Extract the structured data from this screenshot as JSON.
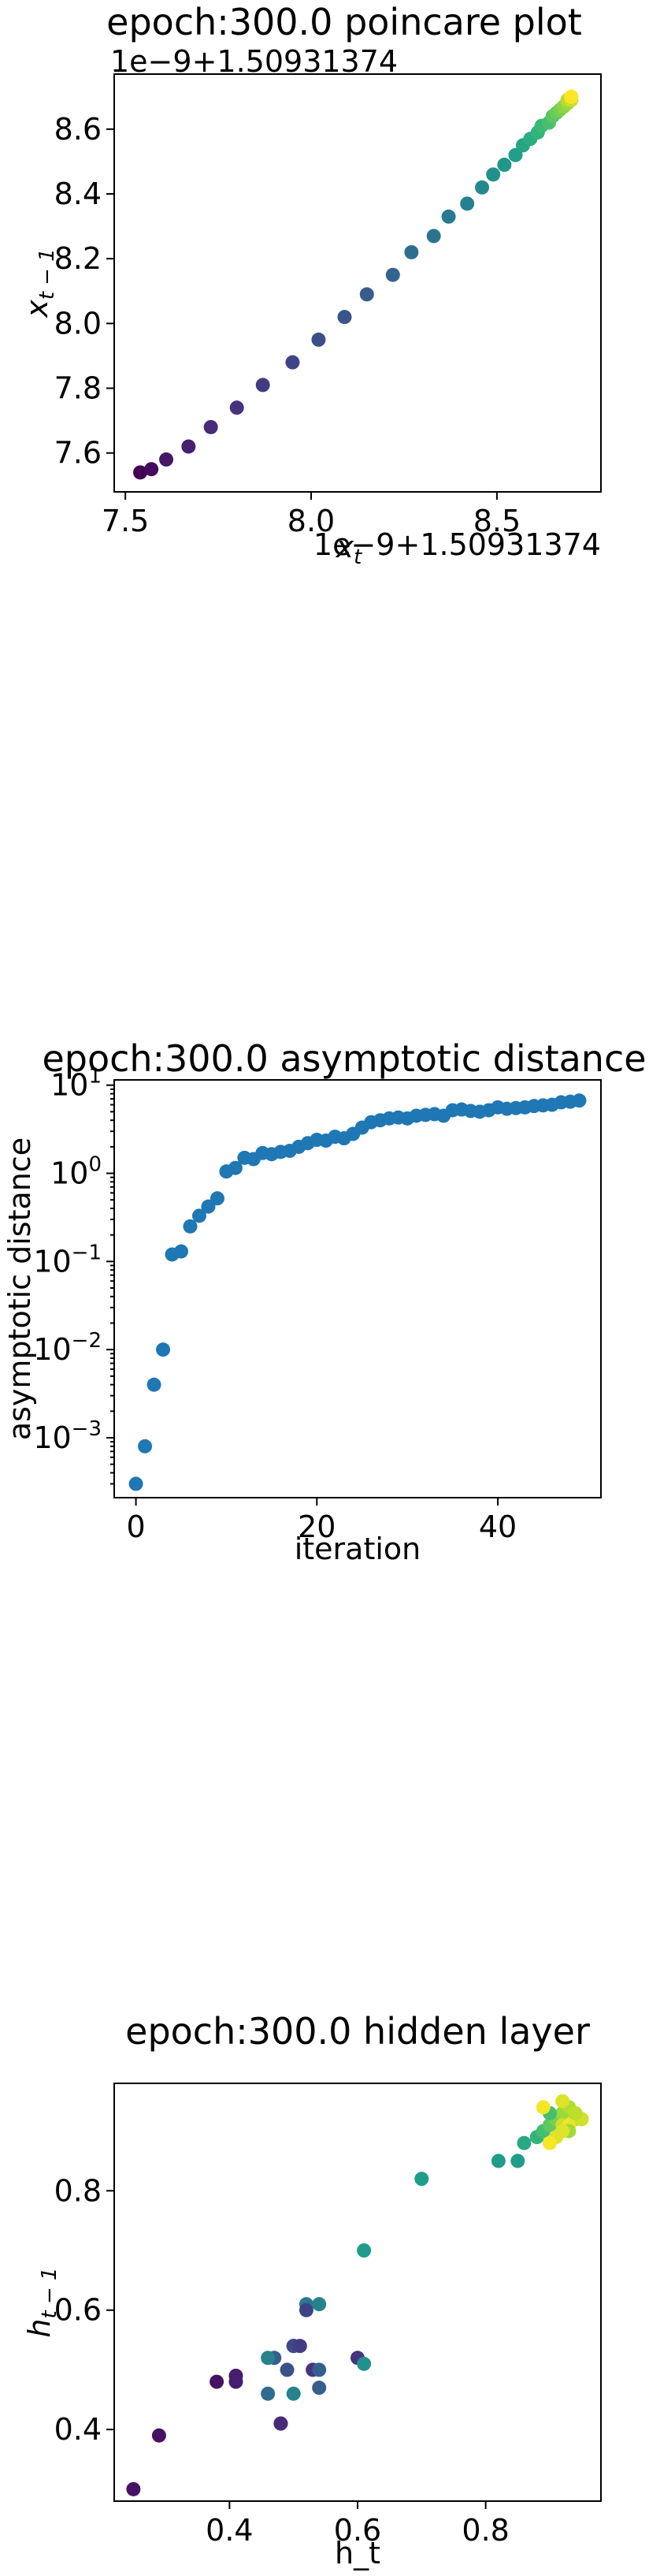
{
  "chart_data": [
    {
      "type": "scatter",
      "title": "epoch:300.0 poincare plot",
      "xlabel": "x_t",
      "ylabel": "x_{t-1}",
      "x_offset_text": "1e−9+1.50931374",
      "y_offset_text": "1e−9+1.50931374",
      "xlim": [
        7.47,
        8.78
      ],
      "ylim": [
        7.48,
        8.77
      ],
      "xticks": [
        {
          "v": 7.5,
          "label": "7.5"
        },
        {
          "v": 8.0,
          "label": "8.0"
        },
        {
          "v": 8.5,
          "label": "8.5"
        }
      ],
      "yticks": [
        {
          "v": 7.6,
          "label": "7.6"
        },
        {
          "v": 7.8,
          "label": "7.8"
        },
        {
          "v": 8.0,
          "label": "8.0"
        },
        {
          "v": 8.2,
          "label": "8.2"
        },
        {
          "v": 8.4,
          "label": "8.4"
        },
        {
          "v": 8.6,
          "label": "8.6"
        }
      ],
      "colormap": "viridis",
      "x": [
        7.54,
        7.57,
        7.61,
        7.67,
        7.73,
        7.8,
        7.87,
        7.95,
        8.02,
        8.09,
        8.15,
        8.22,
        8.27,
        8.33,
        8.37,
        8.42,
        8.46,
        8.49,
        8.52,
        8.55,
        8.57,
        8.59,
        8.61,
        8.62,
        8.64,
        8.65,
        8.66,
        8.67,
        8.68,
        8.69,
        8.69,
        8.7,
        8.7,
        8.7,
        8.7
      ],
      "y": [
        7.54,
        7.55,
        7.58,
        7.62,
        7.68,
        7.74,
        7.81,
        7.88,
        7.95,
        8.02,
        8.09,
        8.15,
        8.22,
        8.27,
        8.33,
        8.37,
        8.42,
        8.46,
        8.49,
        8.52,
        8.55,
        8.57,
        8.59,
        8.61,
        8.62,
        8.64,
        8.65,
        8.66,
        8.67,
        8.68,
        8.69,
        8.69,
        8.7,
        8.7,
        8.7
      ]
    },
    {
      "type": "scatter",
      "title": "epoch:300.0 asymptotic distance",
      "xlabel": "iteration",
      "ylabel": "asymptotic distance",
      "yscale": "log",
      "xlim": [
        -2.4,
        51.4
      ],
      "ylim_log10": [
        -3.68,
        1.06
      ],
      "xticks": [
        {
          "v": 0,
          "label": "0"
        },
        {
          "v": 20,
          "label": "20"
        },
        {
          "v": 40,
          "label": "40"
        }
      ],
      "yticks": [
        {
          "v": -3,
          "base": "10",
          "exp": "−3"
        },
        {
          "v": -2,
          "base": "10",
          "exp": "−2"
        },
        {
          "v": -1,
          "base": "10",
          "exp": "−1"
        },
        {
          "v": 0,
          "base": "10",
          "exp": "0"
        },
        {
          "v": 1,
          "base": "10",
          "exp": "1"
        }
      ],
      "color": "#1f77b4",
      "x": [
        0,
        1,
        2,
        3,
        4,
        5,
        6,
        7,
        8,
        9,
        10,
        11,
        12,
        13,
        14,
        15,
        16,
        17,
        18,
        19,
        20,
        21,
        22,
        23,
        24,
        25,
        26,
        27,
        28,
        29,
        30,
        31,
        32,
        33,
        34,
        35,
        36,
        37,
        38,
        39,
        40,
        41,
        42,
        43,
        44,
        45,
        46,
        47,
        48,
        49
      ],
      "y": [
        0.0003,
        0.0008,
        0.004,
        0.01,
        0.12,
        0.13,
        0.25,
        0.33,
        0.42,
        0.52,
        1.05,
        1.15,
        1.5,
        1.45,
        1.7,
        1.65,
        1.75,
        1.8,
        2.0,
        2.2,
        2.4,
        2.35,
        2.6,
        2.5,
        2.8,
        3.3,
        3.8,
        4.0,
        4.2,
        4.3,
        4.2,
        4.5,
        4.6,
        4.7,
        4.5,
        5.2,
        5.3,
        5.1,
        5.0,
        5.2,
        5.6,
        5.4,
        5.5,
        5.6,
        5.8,
        5.9,
        6.0,
        6.4,
        6.5,
        6.7
      ]
    },
    {
      "type": "scatter",
      "title": "epoch:300.0 hidden layer",
      "xlabel": "h_t",
      "ylabel": "h_{t-1}",
      "xlim": [
        0.22,
        0.98
      ],
      "ylim": [
        0.28,
        0.98
      ],
      "xticks": [
        {
          "v": 0.4,
          "label": "0.4"
        },
        {
          "v": 0.6,
          "label": "0.6"
        },
        {
          "v": 0.8,
          "label": "0.8"
        }
      ],
      "yticks": [
        {
          "v": 0.4,
          "label": "0.4"
        },
        {
          "v": 0.6,
          "label": "0.6"
        },
        {
          "v": 0.8,
          "label": "0.8"
        }
      ],
      "colormap": "viridis",
      "x": [
        0.25,
        0.29,
        0.38,
        0.41,
        0.41,
        0.48,
        0.48,
        0.46,
        0.47,
        0.49,
        0.5,
        0.5,
        0.51,
        0.52,
        0.53,
        0.54,
        0.54,
        0.54,
        0.52,
        0.5,
        0.46,
        0.6,
        0.61,
        0.61,
        0.7,
        0.82,
        0.85,
        0.86,
        0.88,
        0.89,
        0.9,
        0.91,
        0.92,
        0.93,
        0.94,
        0.92,
        0.91,
        0.93,
        0.9,
        0.92,
        0.95,
        0.94,
        0.93,
        0.9,
        0.92,
        0.89
      ],
      "y": [
        0.3,
        0.39,
        0.48,
        0.49,
        0.48,
        0.41,
        0.41,
        0.46,
        0.52,
        0.5,
        0.54,
        0.54,
        0.54,
        0.61,
        0.5,
        0.47,
        0.61,
        0.5,
        0.6,
        0.46,
        0.52,
        0.52,
        0.51,
        0.7,
        0.82,
        0.85,
        0.85,
        0.88,
        0.89,
        0.9,
        0.91,
        0.92,
        0.93,
        0.94,
        0.92,
        0.91,
        0.89,
        0.91,
        0.88,
        0.95,
        0.92,
        0.93,
        0.9,
        0.93,
        0.9,
        0.94
      ],
      "c": [
        0.05,
        0.05,
        0.05,
        0.08,
        0.08,
        0.12,
        0.12,
        0.35,
        0.3,
        0.25,
        0.2,
        0.22,
        0.18,
        0.4,
        0.15,
        0.3,
        0.45,
        0.3,
        0.2,
        0.45,
        0.45,
        0.15,
        0.5,
        0.55,
        0.55,
        0.55,
        0.55,
        0.6,
        0.65,
        0.7,
        0.75,
        0.8,
        0.85,
        0.88,
        0.9,
        0.92,
        0.95,
        0.97,
        0.99,
        0.95,
        0.93,
        0.9,
        0.86,
        0.7,
        0.95,
        0.99
      ]
    }
  ]
}
